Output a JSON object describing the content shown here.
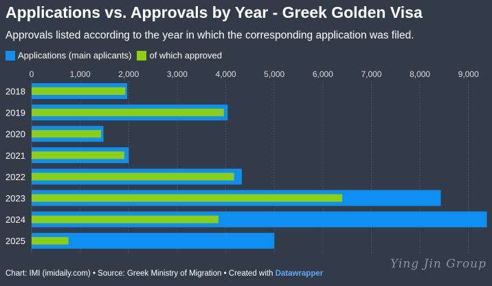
{
  "chart_data": {
    "type": "bar",
    "orientation": "horizontal",
    "title": "Applications vs. Approvals by Year - Greek Golden Visa",
    "subtitle": "Approvals listed according to the year in which the corresponding application was filed.",
    "categories": [
      "2018",
      "2019",
      "2020",
      "2021",
      "2022",
      "2023",
      "2024",
      "2025"
    ],
    "series": [
      {
        "name": "Applications (main aplicants)",
        "color": "#0e8ff2",
        "values": [
          1970,
          4040,
          1480,
          2000,
          4330,
          8430,
          9380,
          5000
        ]
      },
      {
        "name": "of which approved",
        "color": "#8ccf0f",
        "values": [
          1930,
          3960,
          1430,
          1910,
          4170,
          6400,
          3850,
          760
        ]
      }
    ],
    "xlim": [
      0,
      9400
    ],
    "xticks": [
      0,
      1000,
      2000,
      3000,
      4000,
      5000,
      6000,
      7000,
      8000,
      9000
    ],
    "xtick_labels": [
      "0",
      "1,000",
      "2,000",
      "3,000",
      "4,000",
      "5,000",
      "6,000",
      "7,000",
      "8,000",
      "9,000"
    ],
    "grid": true,
    "legend_position": "top-left"
  },
  "footer": {
    "prefix": "Chart: IMI (imidaily.com) • Source: Greek Ministry of Migration • Created with ",
    "brand": "Datawrapper"
  },
  "watermark": "Ying Jin Group",
  "colors": {
    "background": "#343b48",
    "grid": "#4b5260",
    "applications": "#0e8ff2",
    "approved": "#8ccf0f"
  }
}
